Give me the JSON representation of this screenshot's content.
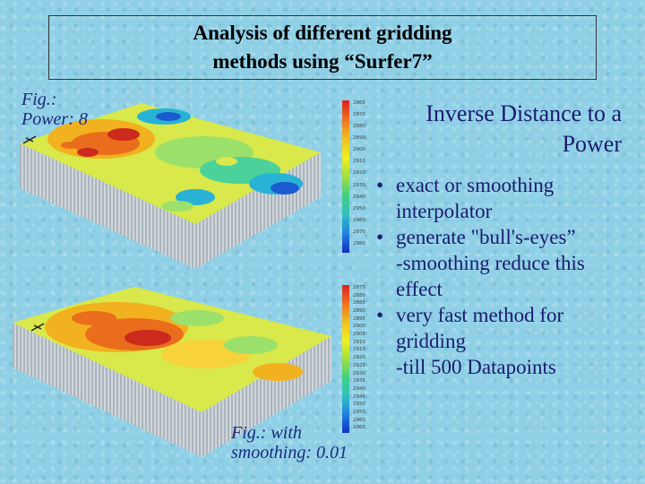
{
  "title": {
    "line1": "Analysis of different gridding",
    "line2": "methods using “Surfer7”"
  },
  "figures": {
    "top": {
      "label_line1": "Fig.:",
      "label_line2": "Power: 8"
    },
    "bottom": {
      "label_line1": "Fig.: with",
      "label_line2": "smoothing: 0.01"
    }
  },
  "method": {
    "title_line1": "Inverse Distance to a",
    "title_line2": "Power"
  },
  "bullets": [
    {
      "text": "exact or smoothing interpolator"
    },
    {
      "text": "generate \"bull's-eyes”",
      "sub": "-smoothing reduce this effect"
    },
    {
      "text": "very fast method for gridding",
      "sub": "-till 500 Datapoints"
    }
  ],
  "legends": {
    "top": [
      "2865",
      "2870",
      "2880",
      "2890",
      "2900",
      "2910",
      "2920",
      "2930",
      "2940",
      "2950",
      "2960",
      "2970",
      "2980"
    ],
    "bottom": [
      "2875",
      "2880",
      "2885",
      "2890",
      "2895",
      "2900",
      "2905",
      "2910",
      "2915",
      "2920",
      "2925",
      "2930",
      "2935",
      "2940",
      "2945",
      "2950",
      "2955",
      "2960",
      "2965"
    ]
  },
  "colors": {
    "title_text": "#000000",
    "body_text": "#1b1b6e",
    "fig_label": "#1a2a7a",
    "background": "#8fd0e6"
  }
}
